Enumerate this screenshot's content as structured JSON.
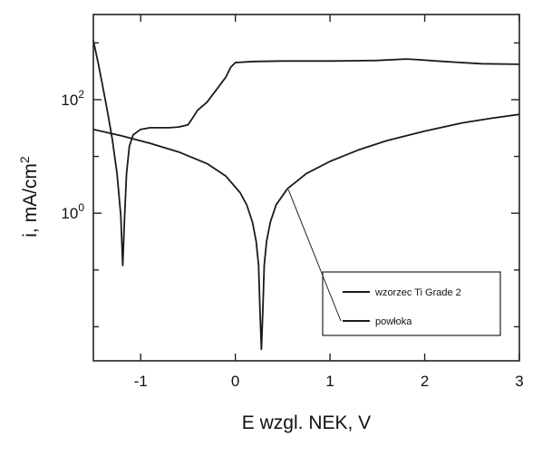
{
  "chart_data": {
    "type": "line",
    "title": "",
    "xlabel": "E wzgl. NEK, V",
    "ylabel": "i, mA/cm",
    "ylabel_superscript": "2",
    "xlim": [
      -1.5,
      3
    ],
    "ylim_log10": [
      -2.6,
      3.5
    ],
    "y_scale": "log",
    "grid": false,
    "legend_position": "bottom-right",
    "x_ticks": [
      {
        "value": -1,
        "label": "-1"
      },
      {
        "value": 0,
        "label": "0"
      },
      {
        "value": 1,
        "label": "1"
      },
      {
        "value": 2,
        "label": "2"
      },
      {
        "value": 3,
        "label": "3"
      }
    ],
    "y_ticks": [
      {
        "log10": 2,
        "label": "10",
        "sup": "2"
      },
      {
        "log10": 0,
        "label": "10",
        "sup": "0"
      }
    ],
    "y_minor_ticks_log10": [
      3,
      1,
      -1,
      -2
    ],
    "series": [
      {
        "name": "wzorzec Ti Grade 2",
        "color": "#1a1a1a",
        "points": [
          [
            -1.5,
            1100
          ],
          [
            -1.45,
            450
          ],
          [
            -1.4,
            170
          ],
          [
            -1.35,
            60
          ],
          [
            -1.3,
            20
          ],
          [
            -1.25,
            5.0
          ],
          [
            -1.21,
            0.9
          ],
          [
            -1.19,
            0.12
          ],
          [
            -1.17,
            0.9
          ],
          [
            -1.15,
            5.0
          ],
          [
            -1.12,
            15
          ],
          [
            -1.08,
            24
          ],
          [
            -1.0,
            30
          ],
          [
            -0.9,
            32
          ],
          [
            -0.8,
            32
          ],
          [
            -0.7,
            32
          ],
          [
            -0.6,
            33
          ],
          [
            -0.5,
            36
          ],
          [
            -0.45,
            48
          ],
          [
            -0.4,
            65
          ],
          [
            -0.3,
            90
          ],
          [
            -0.2,
            150
          ],
          [
            -0.1,
            250
          ],
          [
            -0.05,
            370
          ],
          [
            0.0,
            450
          ],
          [
            0.2,
            470
          ],
          [
            0.5,
            480
          ],
          [
            1.0,
            480
          ],
          [
            1.5,
            490
          ],
          [
            1.8,
            520
          ],
          [
            1.9,
            510
          ],
          [
            2.2,
            470
          ],
          [
            2.6,
            430
          ],
          [
            3.0,
            420
          ]
        ]
      },
      {
        "name": "powłoka",
        "color": "#1a1a1a",
        "points": [
          [
            -1.5,
            30
          ],
          [
            -1.2,
            23
          ],
          [
            -0.9,
            17
          ],
          [
            -0.6,
            12
          ],
          [
            -0.3,
            7.5
          ],
          [
            -0.1,
            4.5
          ],
          [
            0.05,
            2.3
          ],
          [
            0.12,
            1.4
          ],
          [
            0.18,
            0.7
          ],
          [
            0.22,
            0.32
          ],
          [
            0.245,
            0.12
          ],
          [
            0.26,
            0.02
          ],
          [
            0.275,
            0.004
          ],
          [
            0.29,
            0.02
          ],
          [
            0.305,
            0.12
          ],
          [
            0.33,
            0.32
          ],
          [
            0.37,
            0.7
          ],
          [
            0.43,
            1.4
          ],
          [
            0.55,
            2.7
          ],
          [
            0.75,
            5.0
          ],
          [
            1.0,
            8.2
          ],
          [
            1.3,
            13
          ],
          [
            1.6,
            19
          ],
          [
            2.0,
            28
          ],
          [
            2.4,
            39
          ],
          [
            2.7,
            47
          ],
          [
            3.0,
            55
          ]
        ]
      }
    ]
  }
}
